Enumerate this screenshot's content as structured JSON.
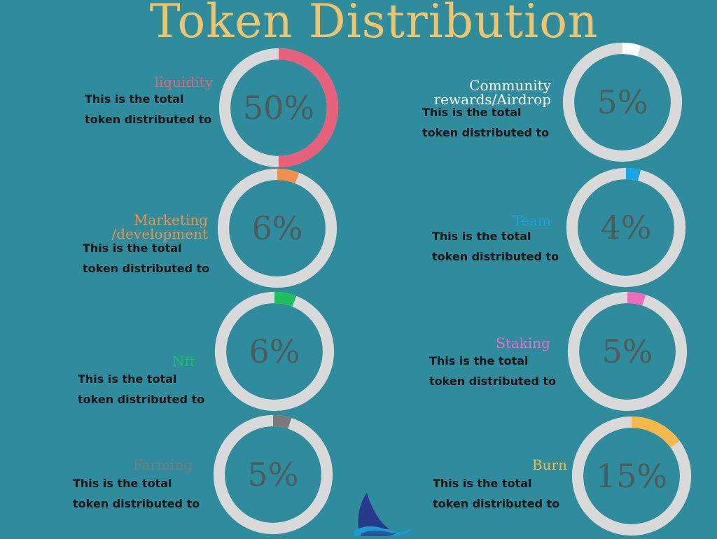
{
  "title": "Token Distribution",
  "colors": {
    "background": "#2f8c9c",
    "title": "#efc46a",
    "track": "#d9d9d9",
    "percent_text": "#4e5a5c",
    "description_text": "#101518"
  },
  "logo": {
    "icon": "shark-fin-logo-icon"
  },
  "chart_data": {
    "type": "pie",
    "title": "Token Distribution",
    "slices": [
      {
        "label": "liquidity",
        "value": 50,
        "display": "50%",
        "color": "#e8607a",
        "description": [
          "This is the total",
          "token distributed to"
        ]
      },
      {
        "label": "Community rewards/Airdrop",
        "label_lines": [
          "Community",
          "rewards/Airdrop"
        ],
        "value": 5,
        "display": "5%",
        "color": "#ffffff",
        "description": [
          "This is the total",
          "token distributed to"
        ]
      },
      {
        "label": "Marketing /development",
        "label_lines": [
          "Marketing",
          "/development"
        ],
        "value": 6,
        "display": "6%",
        "color": "#f0904a",
        "description": [
          "This is the total",
          "token distributed to"
        ]
      },
      {
        "label": "Team",
        "value": 4,
        "display": "4%",
        "color": "#1aa3e6",
        "description": [
          "This is the total",
          "token distributed to"
        ]
      },
      {
        "label": "Nft",
        "value": 6,
        "display": "6%",
        "color": "#1fbf5a",
        "description": [
          "This is the total",
          "token distributed to"
        ]
      },
      {
        "label": "Staking",
        "value": 5,
        "display": "5%",
        "color": "#f06ac0",
        "description": [
          "This is the total",
          "token distributed to"
        ]
      },
      {
        "label": "Farming",
        "value": 5,
        "display": "5%",
        "color": "#7a7a7a",
        "description": [
          "This is the total",
          "token distributed to"
        ]
      },
      {
        "label": "Burn",
        "value": 15,
        "display": "15%",
        "color": "#f5b84a",
        "description": [
          "This is the total",
          "token distributed to"
        ]
      }
    ]
  }
}
